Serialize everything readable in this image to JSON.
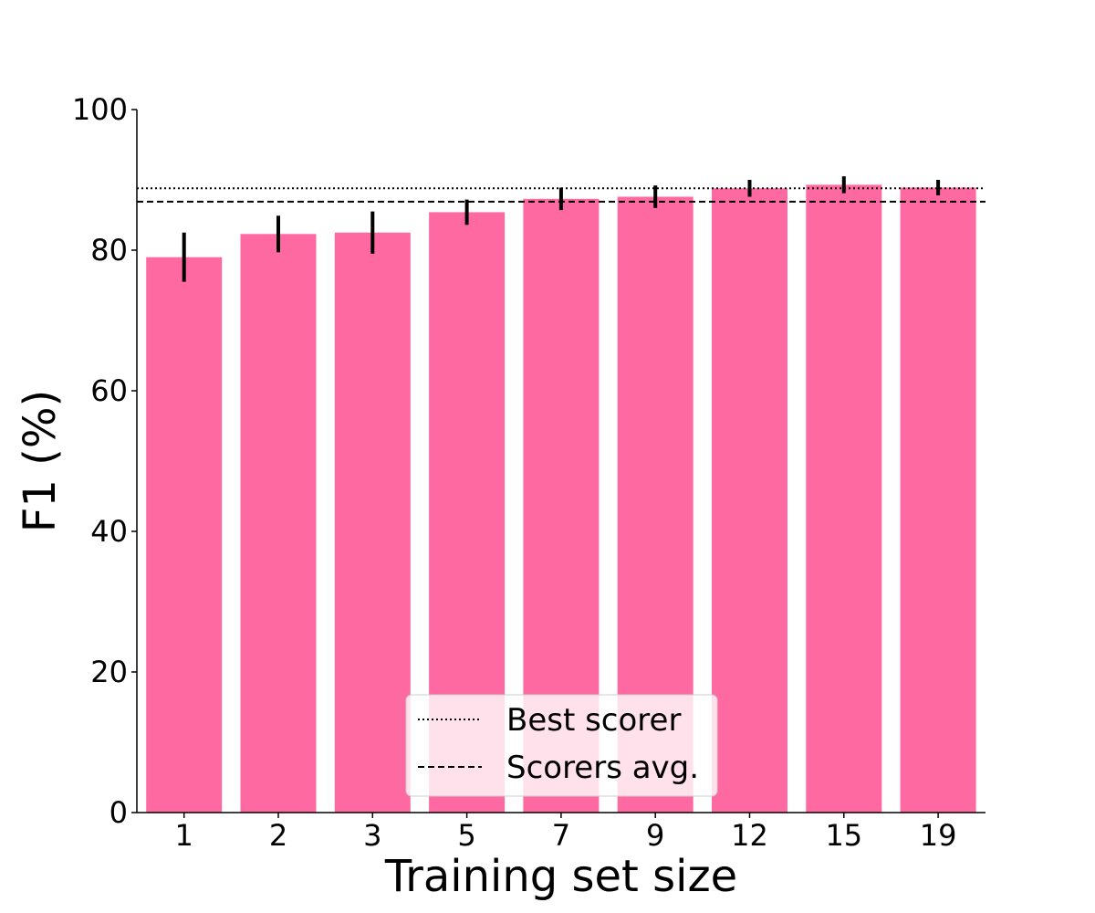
{
  "chart_data": {
    "type": "bar",
    "categories": [
      "1",
      "2",
      "3",
      "5",
      "7",
      "9",
      "12",
      "15",
      "19"
    ],
    "values": [
      79.0,
      82.3,
      82.5,
      85.4,
      87.3,
      87.6,
      88.8,
      89.3,
      88.9
    ],
    "errors": [
      3.5,
      2.6,
      3.0,
      1.8,
      1.6,
      1.6,
      1.2,
      1.2,
      1.1
    ],
    "xlabel": "Training set size",
    "ylabel": "F1 (%)",
    "ylim": [
      0,
      100
    ],
    "yticks": [
      0,
      20,
      40,
      60,
      80,
      100
    ],
    "bar_color": "#ff69a1",
    "error_color": "#000000",
    "reference_lines": [
      {
        "name": "Best scorer",
        "value": 88.8,
        "style": "dotted"
      },
      {
        "name": "Scorers avg.",
        "value": 86.9,
        "style": "dashed"
      }
    ],
    "legend": {
      "position": "bottom-center",
      "entries": [
        "Best scorer",
        "Scorers avg."
      ]
    },
    "grid": false
  }
}
